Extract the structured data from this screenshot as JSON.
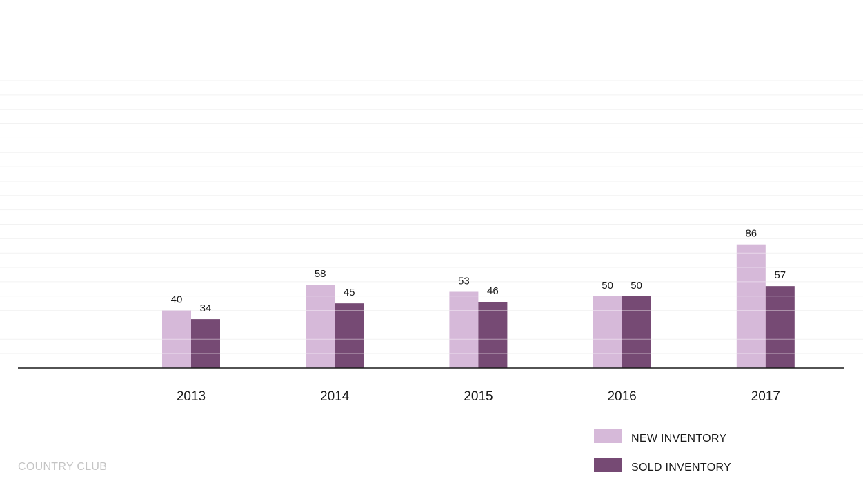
{
  "chart_data": {
    "type": "bar",
    "categories": [
      "2013",
      "2014",
      "2015",
      "2016",
      "2017"
    ],
    "series": [
      {
        "name": "NEW INVENTORY",
        "values": [
          40,
          58,
          53,
          50,
          86
        ],
        "color": "#d6b9d9"
      },
      {
        "name": "SOLD INVENTORY",
        "values": [
          34,
          45,
          46,
          50,
          57
        ],
        "color": "#764a74"
      }
    ],
    "ylim": [
      0,
      200
    ],
    "grid": true,
    "legend_position": "bottom-right",
    "title": "",
    "xlabel": "",
    "ylabel": ""
  },
  "footer": {
    "label": "COUNTRY CLUB"
  }
}
